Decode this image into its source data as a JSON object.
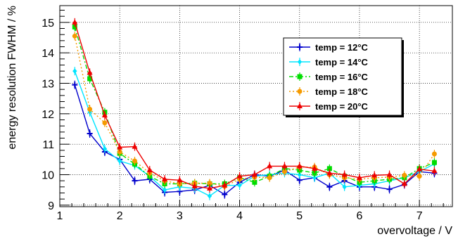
{
  "chart_data": {
    "type": "line",
    "xlabel": "overvoltage / V",
    "ylabel": "energy resolution FWHM / %",
    "xlim": [
      1.0,
      7.55
    ],
    "ylim": [
      8.95,
      15.55
    ],
    "x_ticks": [
      1,
      2,
      3,
      4,
      5,
      6,
      7
    ],
    "y_ticks": [
      9,
      10,
      11,
      12,
      13,
      14,
      15
    ],
    "grid": true,
    "legend_position": "top-right",
    "x": [
      1.25,
      1.5,
      1.75,
      2.0,
      2.25,
      2.5,
      2.75,
      3.0,
      3.25,
      3.5,
      3.75,
      4.0,
      4.25,
      4.5,
      4.75,
      5.0,
      5.25,
      5.5,
      5.75,
      6.0,
      6.25,
      6.5,
      6.75,
      7.0,
      7.25
    ],
    "series": [
      {
        "name": "temp = 12°C",
        "color": "#0000cc",
        "marker": "plus",
        "dash": "",
        "values": [
          12.95,
          11.35,
          10.75,
          10.5,
          9.8,
          9.85,
          9.42,
          9.45,
          9.5,
          9.65,
          9.35,
          9.75,
          10.0,
          9.95,
          10.15,
          9.82,
          9.9,
          9.6,
          9.8,
          9.6,
          9.6,
          9.52,
          9.68,
          10.1,
          10.05
        ]
      },
      {
        "name": "temp = 14°C",
        "color": "#00e5ff",
        "marker": "diamond",
        "dash": "",
        "values": [
          13.4,
          12.05,
          10.85,
          10.45,
          10.3,
          9.95,
          9.5,
          9.6,
          9.55,
          9.3,
          9.65,
          9.65,
          9.95,
          10.0,
          10.05,
          10.0,
          9.9,
          10.05,
          9.6,
          9.65,
          9.7,
          9.8,
          9.9,
          10.1,
          10.35
        ]
      },
      {
        "name": "temp = 16°C",
        "color": "#00dd00",
        "marker": "square",
        "dash": "6,3,2,3",
        "values": [
          14.85,
          13.15,
          12.05,
          10.7,
          10.35,
          9.95,
          9.7,
          9.7,
          9.72,
          9.7,
          9.7,
          9.9,
          9.75,
          9.95,
          10.2,
          10.15,
          10.05,
          10.2,
          9.95,
          9.75,
          9.8,
          9.85,
          9.9,
          10.2,
          10.4
        ]
      },
      {
        "name": "temp = 18°C",
        "color": "#f59a00",
        "marker": "circle",
        "dash": "2,3",
        "values": [
          14.55,
          12.15,
          11.7,
          10.75,
          10.45,
          10.05,
          9.8,
          9.7,
          9.72,
          9.72,
          9.62,
          9.85,
          9.92,
          9.9,
          10.1,
          10.25,
          10.25,
          10.0,
          9.9,
          9.85,
          9.9,
          9.92,
          9.98,
          9.95,
          10.68
        ]
      },
      {
        "name": "temp = 20°C",
        "color": "#ee0000",
        "marker": "triangle",
        "dash": "",
        "values": [
          15.0,
          13.35,
          11.95,
          10.9,
          10.92,
          10.15,
          9.85,
          9.82,
          9.62,
          9.55,
          9.65,
          9.95,
          10.0,
          10.28,
          10.28,
          10.28,
          10.2,
          10.05,
          10.0,
          9.9,
          9.98,
          10.0,
          9.7,
          10.18,
          10.12
        ]
      }
    ]
  }
}
